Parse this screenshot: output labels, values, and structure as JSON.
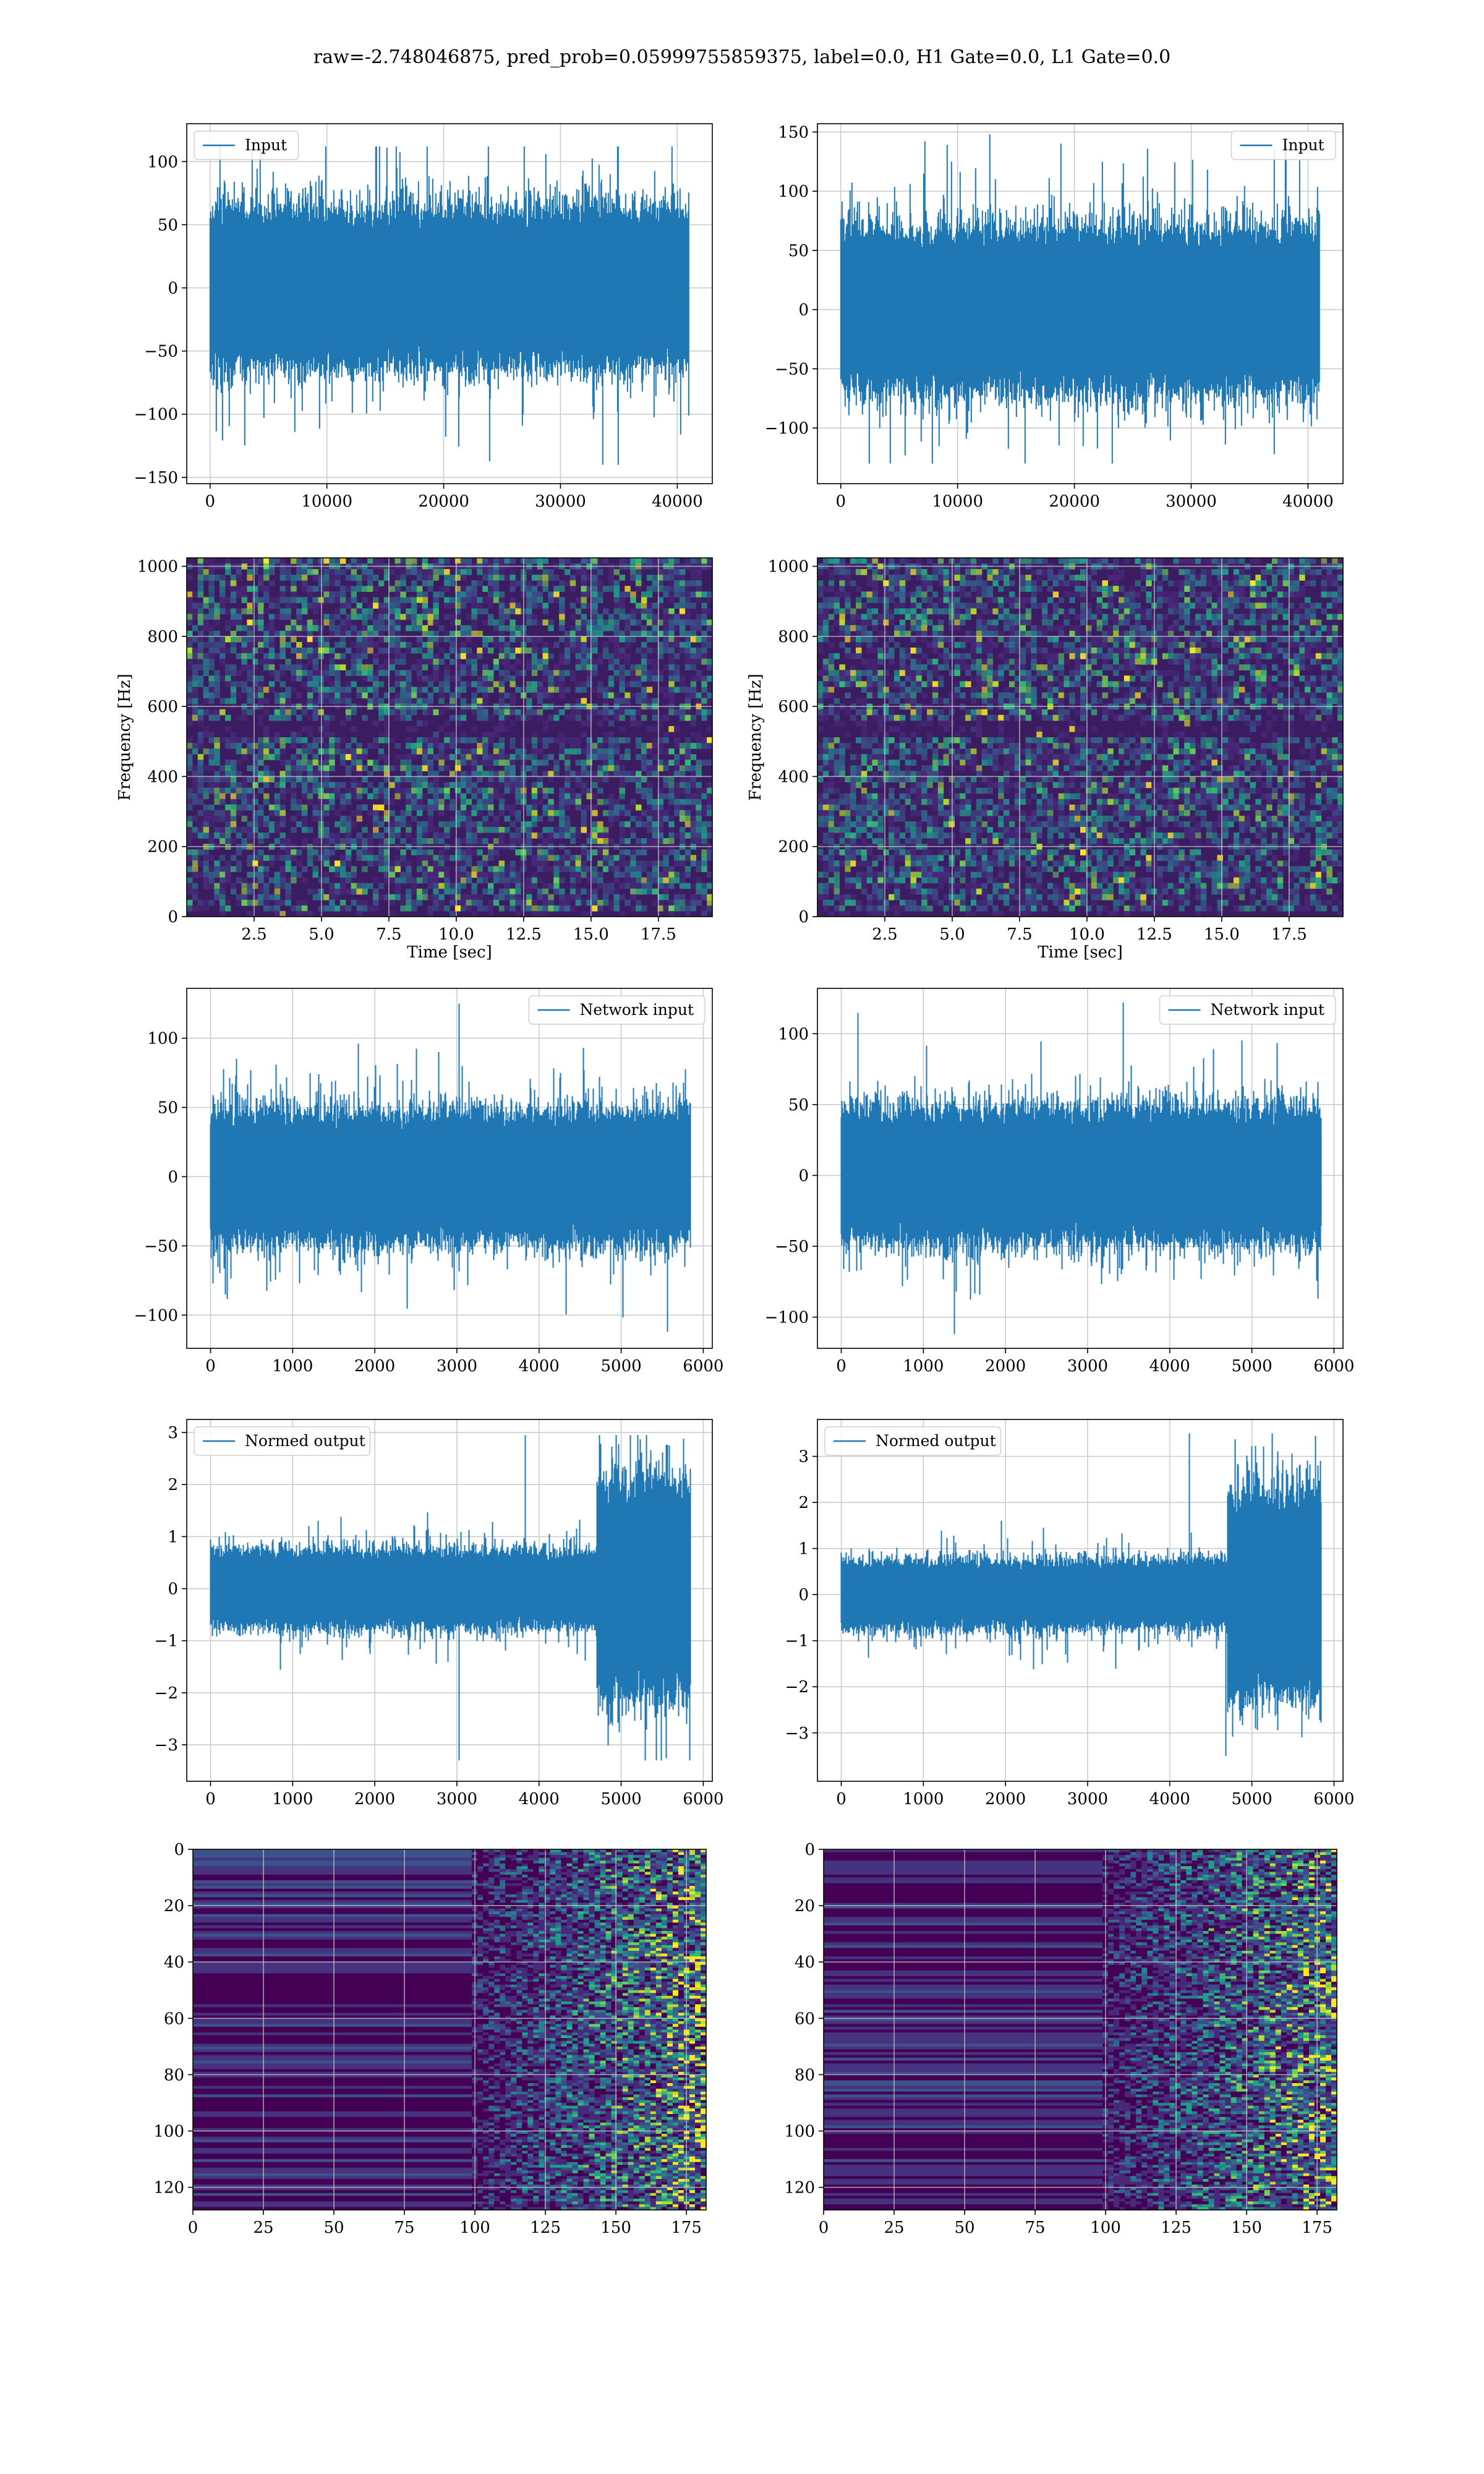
{
  "figure": {
    "title": "raw=-2.748046875, pred_prob=0.05999755859375, label=0.0, H1 Gate=0.0, L1 Gate=0.0"
  },
  "colors": {
    "line": "#1f77b4",
    "grid": "#cccccc",
    "spec_background": "#3b1c5c",
    "spec_colormap": [
      "#440154",
      "#3b528b",
      "#21918c",
      "#5ec962",
      "#fde725"
    ]
  },
  "chart_data": [
    {
      "id": "input-h1",
      "type": "line",
      "legend": "Input",
      "legend_loc": "upper left",
      "xlim": [
        -2000,
        43000
      ],
      "ylim": [
        -155,
        130
      ],
      "xticks": [
        0,
        10000,
        20000,
        30000,
        40000
      ],
      "yticks": [
        -150,
        -100,
        -50,
        0,
        50,
        100
      ],
      "xlabel": "",
      "ylabel": "",
      "grid": true,
      "series": [
        {
          "n_samples": 40960,
          "body_range": [
            -60,
            60
          ],
          "extremes": [
            -140,
            112
          ]
        }
      ]
    },
    {
      "id": "input-l1",
      "type": "line",
      "legend": "Input",
      "legend_loc": "upper right",
      "xlim": [
        -2000,
        43000
      ],
      "ylim": [
        -147,
        157
      ],
      "xticks": [
        0,
        10000,
        20000,
        30000,
        40000
      ],
      "yticks": [
        -100,
        -50,
        0,
        50,
        100,
        150
      ],
      "xlabel": "",
      "ylabel": "",
      "grid": true,
      "series": [
        {
          "n_samples": 40960,
          "body_range": [
            -65,
            65
          ],
          "extremes": [
            -130,
            148
          ]
        }
      ]
    },
    {
      "id": "spectrogram-h1",
      "type": "heatmap",
      "xlim": [
        0,
        19.5
      ],
      "ylim": [
        0,
        1024
      ],
      "xticks": [
        2.5,
        5.0,
        7.5,
        10.0,
        12.5,
        15.0,
        17.5
      ],
      "yticks": [
        0,
        200,
        400,
        600,
        800,
        1000
      ],
      "xlabel": "Time [sec]",
      "ylabel": "Frequency [Hz]",
      "grid": true
    },
    {
      "id": "spectrogram-l1",
      "type": "heatmap",
      "xlim": [
        0,
        19.5
      ],
      "ylim": [
        0,
        1024
      ],
      "xticks": [
        2.5,
        5.0,
        7.5,
        10.0,
        12.5,
        15.0,
        17.5
      ],
      "yticks": [
        0,
        200,
        400,
        600,
        800,
        1000
      ],
      "xlabel": "Time [sec]",
      "ylabel": "Frequency [Hz]",
      "grid": true
    },
    {
      "id": "network-input-h1",
      "type": "line",
      "legend": "Network input",
      "legend_loc": "upper right",
      "xlim": [
        -290,
        6110
      ],
      "ylim": [
        -124,
        136
      ],
      "xticks": [
        0,
        1000,
        2000,
        3000,
        4000,
        5000,
        6000
      ],
      "yticks": [
        -100,
        -50,
        0,
        50,
        100
      ],
      "xlabel": "",
      "ylabel": "",
      "grid": true,
      "series": [
        {
          "n_samples": 5840,
          "body_range": [
            -45,
            45
          ],
          "extremes": [
            -112,
            125
          ]
        }
      ]
    },
    {
      "id": "network-input-l1",
      "type": "line",
      "legend": "Network input",
      "legend_loc": "upper right",
      "xlim": [
        -290,
        6110
      ],
      "ylim": [
        -122,
        132
      ],
      "xticks": [
        0,
        1000,
        2000,
        3000,
        4000,
        5000,
        6000
      ],
      "yticks": [
        -100,
        -50,
        0,
        50,
        100
      ],
      "xlabel": "",
      "ylabel": "",
      "grid": true,
      "series": [
        {
          "n_samples": 5840,
          "body_range": [
            -45,
            45
          ],
          "extremes": [
            -112,
            122
          ]
        }
      ]
    },
    {
      "id": "normed-output-h1",
      "type": "line",
      "legend": "Normed output",
      "legend_loc": "upper left",
      "xlim": [
        -290,
        6110
      ],
      "ylim": [
        -3.7,
        3.25
      ],
      "xticks": [
        0,
        1000,
        2000,
        3000,
        4000,
        5000,
        6000
      ],
      "yticks": [
        -3,
        -2,
        -1,
        0,
        1,
        2,
        3
      ],
      "xlabel": "",
      "ylabel": "",
      "grid": true,
      "series": [
        {
          "n_samples": 5840,
          "body_range": [
            -0.7,
            0.7
          ],
          "burst_start": 4700,
          "burst_range": [
            -1.9,
            2.0
          ],
          "extremes": [
            -3.3,
            2.95
          ]
        }
      ]
    },
    {
      "id": "normed-output-l1",
      "type": "line",
      "legend": "Normed output",
      "legend_loc": "upper left",
      "xlim": [
        -290,
        6110
      ],
      "ylim": [
        -4.05,
        3.8
      ],
      "xticks": [
        0,
        1000,
        2000,
        3000,
        4000,
        5000,
        6000
      ],
      "yticks": [
        -3,
        -2,
        -1,
        0,
        1,
        2,
        3
      ],
      "xlabel": "",
      "ylabel": "",
      "grid": true,
      "series": [
        {
          "n_samples": 5840,
          "body_range": [
            -0.7,
            0.7
          ],
          "burst_start": 4700,
          "burst_range": [
            -2.0,
            2.2
          ],
          "extremes": [
            -3.5,
            3.5
          ]
        }
      ]
    },
    {
      "id": "feature-map-h1",
      "type": "heatmap",
      "xlim": [
        0,
        182
      ],
      "ylim": [
        128,
        0
      ],
      "xticks": [
        0,
        25,
        50,
        75,
        100,
        125,
        150,
        175
      ],
      "yticks": [
        0,
        20,
        40,
        60,
        80,
        100,
        120
      ],
      "xlabel": "",
      "ylabel": "",
      "grid": true
    },
    {
      "id": "feature-map-l1",
      "type": "heatmap",
      "xlim": [
        0,
        182
      ],
      "ylim": [
        128,
        0
      ],
      "xticks": [
        0,
        25,
        50,
        75,
        100,
        125,
        150,
        175
      ],
      "yticks": [
        0,
        20,
        40,
        60,
        80,
        100,
        120
      ],
      "xlabel": "",
      "ylabel": "",
      "grid": true
    }
  ]
}
